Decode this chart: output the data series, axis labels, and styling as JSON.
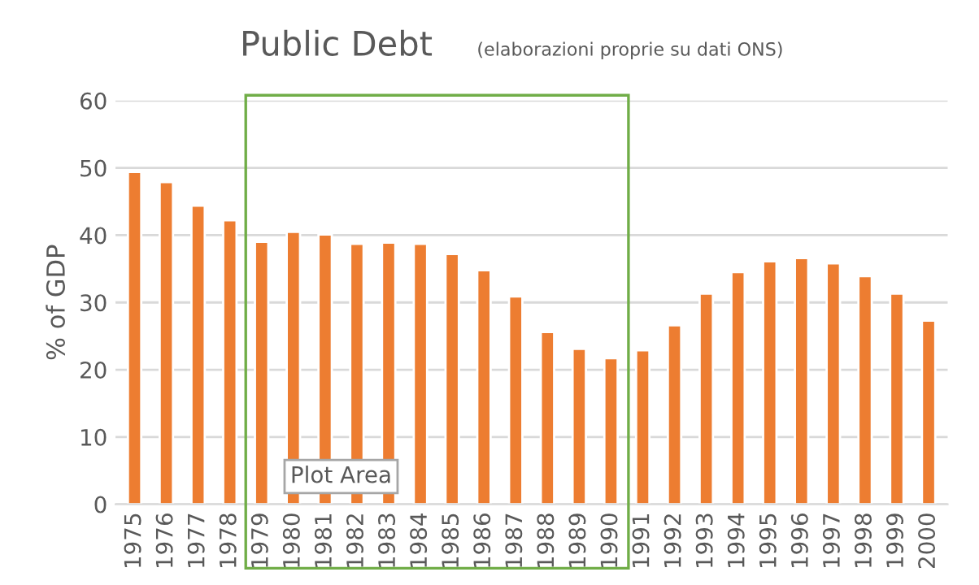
{
  "chart_data": {
    "type": "bar",
    "title": "Public Debt",
    "subtitle": "(elaborazioni proprie su dati ONS)",
    "ylabel": "% of GDP",
    "categories": [
      "1975",
      "1976",
      "1977",
      "1978",
      "1979",
      "1980",
      "1981",
      "1982",
      "1983",
      "1984",
      "1985",
      "1986",
      "1987",
      "1988",
      "1989",
      "1990",
      "1991",
      "1992",
      "1993",
      "1994",
      "1995",
      "1996",
      "1997",
      "1998",
      "1999",
      "2000"
    ],
    "values": [
      49.4,
      47.9,
      44.4,
      42.2,
      39.0,
      40.5,
      40.1,
      38.7,
      38.9,
      38.7,
      37.2,
      34.8,
      30.9,
      25.6,
      23.1,
      21.7,
      22.9,
      26.6,
      31.3,
      34.5,
      36.1,
      36.6,
      35.8,
      33.9,
      31.3,
      27.3
    ],
    "color": "#ed7d31",
    "ylim": [
      0,
      60
    ],
    "yticks": [
      0,
      10,
      20,
      30,
      40,
      50,
      60
    ],
    "grid": "y",
    "annotations": [
      "Plot Area"
    ]
  }
}
